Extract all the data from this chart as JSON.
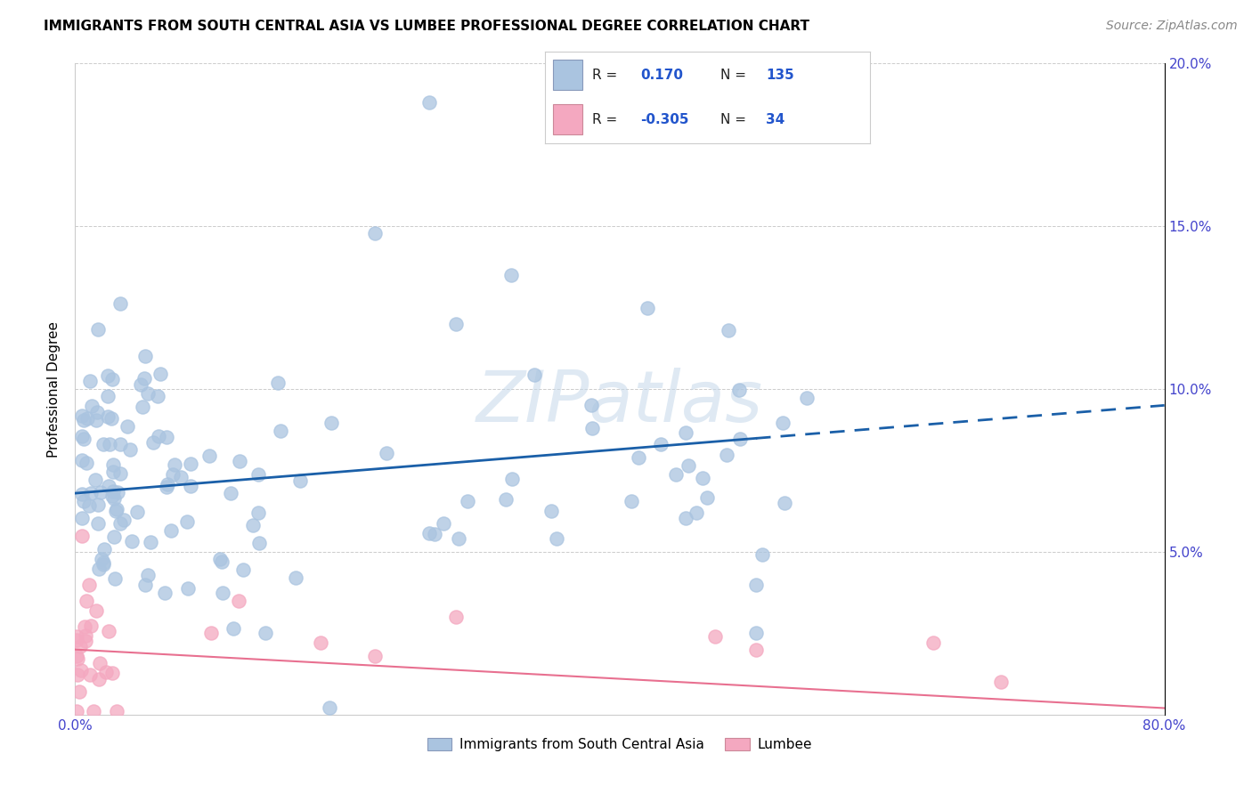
{
  "title": "IMMIGRANTS FROM SOUTH CENTRAL ASIA VS LUMBEE PROFESSIONAL DEGREE CORRELATION CHART",
  "source": "Source: ZipAtlas.com",
  "ylabel": "Professional Degree",
  "xlim": [
    0,
    0.8
  ],
  "ylim": [
    0,
    0.2
  ],
  "xtick_positions": [
    0.0,
    0.1,
    0.2,
    0.3,
    0.4,
    0.5,
    0.6,
    0.7,
    0.8
  ],
  "xtick_labels": [
    "0.0%",
    "",
    "",
    "",
    "",
    "",
    "",
    "",
    "80.0%"
  ],
  "ytick_positions": [
    0.0,
    0.05,
    0.1,
    0.15,
    0.2
  ],
  "ytick_labels_right": [
    "",
    "5.0%",
    "10.0%",
    "15.0%",
    "20.0%"
  ],
  "blue_R": "0.170",
  "blue_N": "135",
  "pink_R": "-0.305",
  "pink_N": "34",
  "blue_color": "#aac4e0",
  "pink_color": "#f4a8c0",
  "blue_line_color": "#1a5fa8",
  "pink_line_color": "#e87090",
  "watermark": "ZIPatlas",
  "legend_blue_label": "Immigrants from South Central Asia",
  "legend_pink_label": "Lumbee",
  "blue_line_start_x": 0.0,
  "blue_line_solid_end_x": 0.5,
  "blue_line_end_x": 0.8,
  "blue_line_start_y": 0.068,
  "blue_line_end_y": 0.095,
  "pink_line_start_x": 0.0,
  "pink_line_end_x": 0.8,
  "pink_line_start_y": 0.02,
  "pink_line_end_y": 0.002,
  "grid_color": "#cccccc",
  "tick_color": "#4444cc",
  "title_fontsize": 11,
  "source_fontsize": 10,
  "axis_fontsize": 11
}
